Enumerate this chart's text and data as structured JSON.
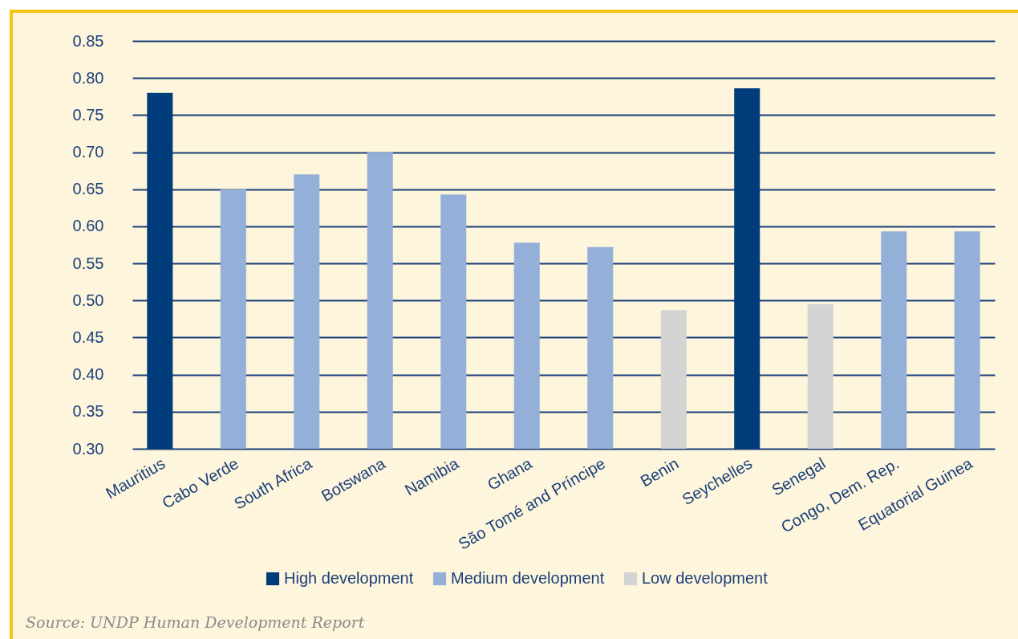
{
  "chart_data": {
    "type": "bar",
    "categories": [
      "Mauritius",
      "Cabo Verde",
      "South Africa",
      "Botswana",
      "Namibia",
      "Ghana",
      "São Tomé and Príncipe",
      "Benin",
      "Seychelles",
      "Senegal",
      "Congo, Dem. Rep.",
      "Equatorial Guinea"
    ],
    "series": [
      {
        "name": "High development",
        "color": "#003b7a",
        "values": [
          0.78,
          null,
          null,
          null,
          null,
          null,
          null,
          null,
          0.786,
          null,
          null,
          null
        ]
      },
      {
        "name": "Medium development",
        "color": "#94b0d8",
        "values": [
          null,
          0.65,
          0.67,
          0.7,
          0.643,
          0.578,
          0.572,
          null,
          null,
          null,
          0.593,
          0.593
        ]
      },
      {
        "name": "Low development",
        "color": "#d4d4d4",
        "values": [
          null,
          null,
          null,
          null,
          null,
          null,
          null,
          0.487,
          null,
          0.495,
          null,
          null
        ]
      }
    ],
    "ylim": [
      0.3,
      0.85
    ],
    "yticks": [
      {
        "value": 0.3,
        "label": "0.30"
      },
      {
        "value": 0.35,
        "label": "0.35"
      },
      {
        "value": 0.4,
        "label": "0.40"
      },
      {
        "value": 0.45,
        "label": "0.45"
      },
      {
        "value": 0.5,
        "label": "0.50"
      },
      {
        "value": 0.55,
        "label": "0.55"
      },
      {
        "value": 0.6,
        "label": "0.60"
      },
      {
        "value": 0.65,
        "label": "0.65"
      },
      {
        "value": 0.7,
        "label": "0.70"
      },
      {
        "value": 0.75,
        "label": "0.75"
      },
      {
        "value": 0.8,
        "label": "0.80"
      },
      {
        "value": 0.85,
        "label": "0.85"
      }
    ],
    "grid": "y",
    "legend": "bottom",
    "annotations": [
      "Source: UNDP Human Development Report"
    ]
  }
}
